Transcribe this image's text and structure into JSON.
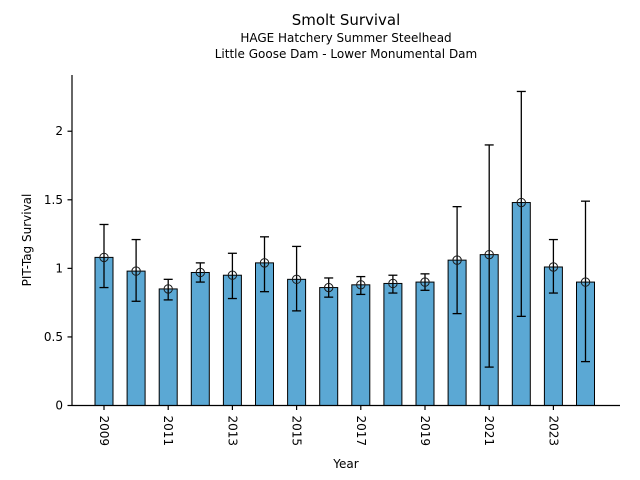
{
  "header": {
    "title": "Smolt Survival",
    "subtitle1": "HAGE Hatchery Summer Steelhead",
    "subtitle2": "Little Goose Dam - Lower Monumental Dam"
  },
  "chart_data": {
    "type": "bar",
    "title": "Smolt Survival",
    "subtitle": "HAGE Hatchery Summer Steelhead / Little Goose Dam - Lower Monumental Dam",
    "xlabel": "Year",
    "ylabel": "PIT-Tag Survival",
    "categories": [
      2009,
      2010,
      2011,
      2012,
      2013,
      2014,
      2015,
      2016,
      2017,
      2018,
      2019,
      2020,
      2021,
      2022,
      2023,
      2024
    ],
    "values": [
      1.08,
      0.98,
      0.85,
      0.97,
      0.95,
      1.04,
      0.92,
      0.86,
      0.88,
      0.89,
      0.9,
      1.06,
      1.1,
      1.48,
      1.01,
      0.9
    ],
    "error_high": [
      1.32,
      1.21,
      0.92,
      1.04,
      1.11,
      1.23,
      1.16,
      0.93,
      0.94,
      0.95,
      0.96,
      1.45,
      1.9,
      2.29,
      1.21,
      1.49
    ],
    "error_low": [
      0.86,
      0.76,
      0.77,
      0.9,
      0.78,
      0.83,
      0.69,
      0.79,
      0.81,
      0.82,
      0.84,
      0.67,
      0.28,
      0.65,
      0.82,
      0.32
    ],
    "x_tick_labels": [
      "2009",
      "2011",
      "2013",
      "2015",
      "2017",
      "2019",
      "2021",
      "2023"
    ],
    "x_tick_years": [
      2009,
      2011,
      2013,
      2015,
      2017,
      2019,
      2021,
      2023
    ],
    "y_ticks": [
      0,
      0.5,
      1,
      1.5,
      2
    ],
    "y_tick_labels": [
      "0",
      "0.5",
      "1",
      "1.5",
      "2"
    ],
    "ylim": [
      0,
      2.41
    ],
    "grid": false,
    "legend": "none",
    "bar_color": "#5BA8D4",
    "edge_color": "#000000",
    "marker": "open-circle",
    "axis_color": "#000000"
  }
}
